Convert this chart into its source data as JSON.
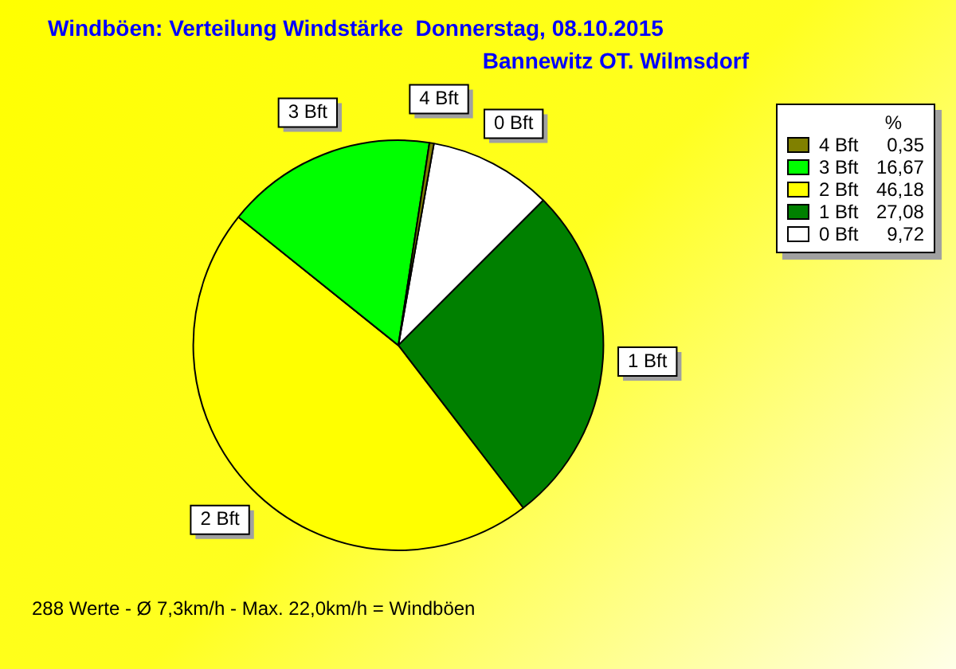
{
  "chart_data": {
    "type": "pie",
    "title": "Windböen: Verteilung Windstärke  Donnerstag, 08.10.2015",
    "subtitle": "Bannewitz OT. Wilmsdorf",
    "legend_title": "%",
    "legend": "top right",
    "categories": [
      "0 Bft",
      "1 Bft",
      "2 Bft",
      "3 Bft",
      "4 Bft"
    ],
    "values": [
      9.72,
      27.08,
      46.18,
      16.67,
      0.35
    ],
    "value_labels": [
      "9,72",
      "27,08",
      "46,18",
      "16,67",
      "0,35"
    ],
    "colors": [
      "#ffffff",
      "#008000",
      "#ffff00",
      "#00ff00",
      "#808000"
    ],
    "annotations": [
      "288 Werte   -   Ø 7,3km/h  -  Max. 22,0km/h = Windböen"
    ]
  }
}
